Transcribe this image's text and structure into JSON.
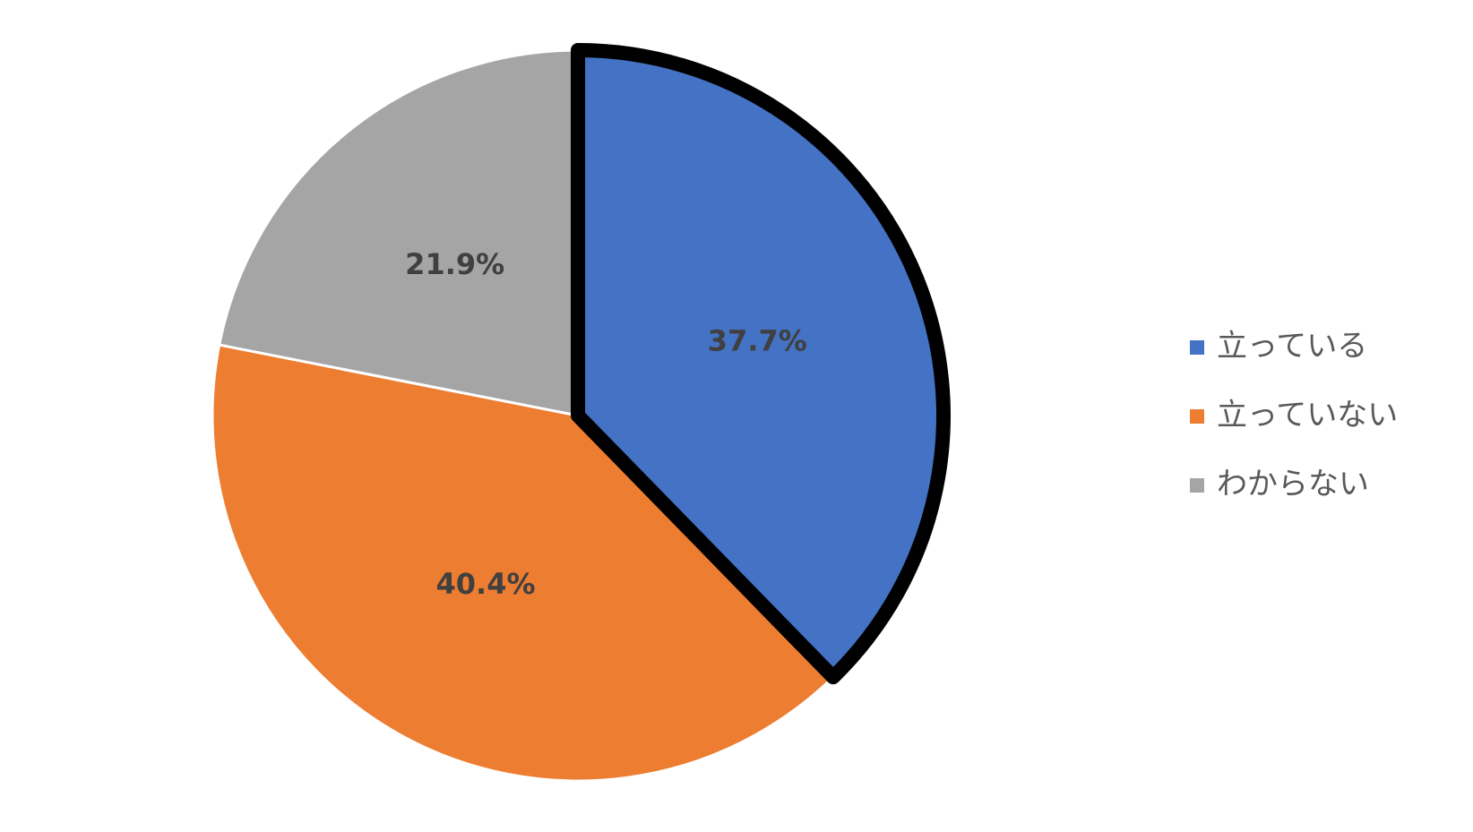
{
  "chart_data": {
    "type": "pie",
    "categories": [
      "立っている",
      "立っていない",
      "わからない"
    ],
    "values": [
      37.7,
      40.4,
      21.9
    ],
    "value_labels": [
      "37.7%",
      "40.4%",
      "21.9%"
    ],
    "colors": [
      "#4472c4",
      "#ed7d31",
      "#a5a5a5"
    ],
    "highlight_index": 0,
    "legend": "right"
  }
}
